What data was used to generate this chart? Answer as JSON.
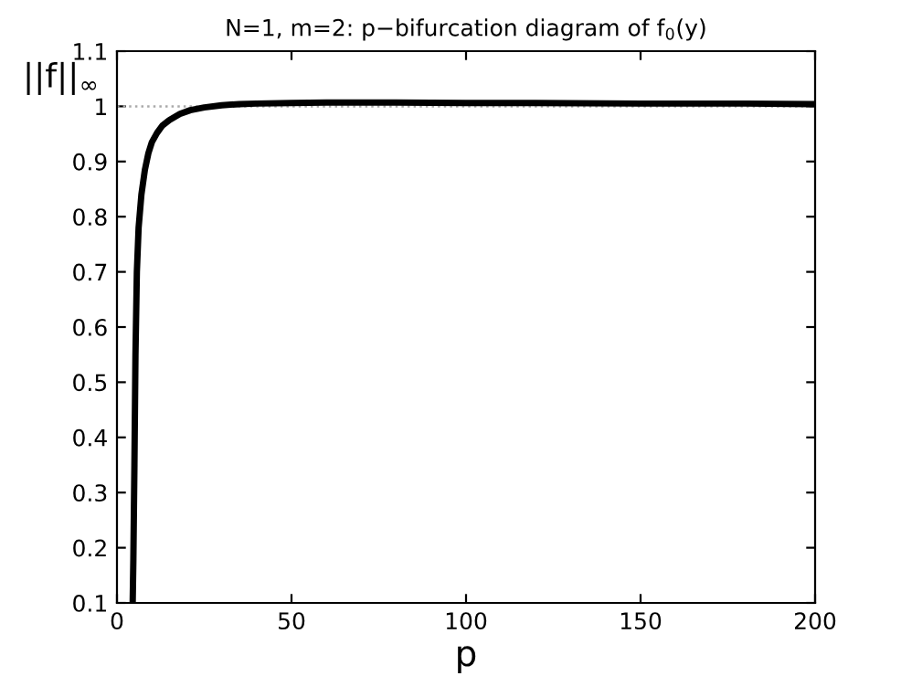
{
  "chart_data": {
    "type": "line",
    "title": "N=1, m=2: p−bifurcation diagram of f$_{0}$(y)",
    "xlabel": "p",
    "ylabel": "||f||$_{∞}$",
    "series": [
      {
        "color": "#000000",
        "x": [
          4.5,
          4.7,
          5.0,
          5.3,
          5.7,
          6.2,
          7.0,
          8.0,
          9.0,
          10.0,
          11.5,
          13,
          15,
          18,
          21,
          25,
          30,
          35,
          40,
          50,
          60,
          70,
          80,
          100,
          120,
          150,
          180,
          200
        ],
        "values": [
          0.1,
          0.18,
          0.35,
          0.55,
          0.7,
          0.78,
          0.84,
          0.885,
          0.915,
          0.935,
          0.952,
          0.965,
          0.975,
          0.986,
          0.993,
          0.998,
          1.002,
          1.004,
          1.005,
          1.006,
          1.007,
          1.007,
          1.007,
          1.006,
          1.006,
          1.005,
          1.005,
          1.004
        ]
      }
    ],
    "xlim": [
      0,
      200
    ],
    "xticks": [
      0,
      50,
      100,
      150,
      200
    ],
    "ylim": [
      0.1,
      1.1
    ],
    "yticks": [
      0.1,
      0.2,
      0.3,
      0.4,
      0.5,
      0.6,
      0.7,
      0.8,
      0.9,
      1,
      1.1
    ],
    "ref_lines": [
      {
        "axis": "y",
        "value": 1,
        "color": "#aaaaaa",
        "line_style": "dotted"
      }
    ],
    "grid": false,
    "legend": false,
    "marker": "none",
    "line_style": "solid"
  }
}
